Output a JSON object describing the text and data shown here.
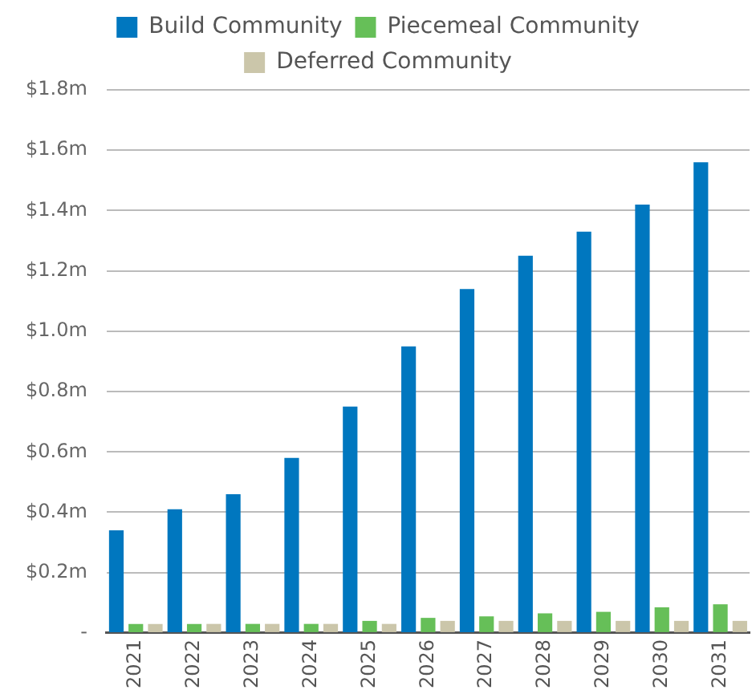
{
  "chart_data": {
    "type": "bar",
    "categories": [
      "2021",
      "2022",
      "2023",
      "2024",
      "2025",
      "2026",
      "2027",
      "2028",
      "2029",
      "2030",
      "2031"
    ],
    "series": [
      {
        "name": "Build Community",
        "color": "#0077bf",
        "values": [
          0.34,
          0.41,
          0.46,
          0.58,
          0.75,
          0.95,
          1.14,
          1.25,
          1.33,
          1.42,
          1.56
        ]
      },
      {
        "name": "Piecemeal Community",
        "color": "#66bf58",
        "values": [
          0.03,
          0.03,
          0.03,
          0.03,
          0.04,
          0.05,
          0.055,
          0.065,
          0.07,
          0.085,
          0.095
        ]
      },
      {
        "name": "Deferred Community",
        "color": "#cbc6aa",
        "values": [
          0.03,
          0.03,
          0.03,
          0.03,
          0.03,
          0.04,
          0.04,
          0.04,
          0.04,
          0.04,
          0.04
        ]
      }
    ],
    "ylim": [
      0,
      1.8
    ],
    "yticks": [
      {
        "value": 0,
        "label": "-"
      },
      {
        "value": 0.2,
        "label": "$0.2m"
      },
      {
        "value": 0.4,
        "label": "$0.4m"
      },
      {
        "value": 0.6,
        "label": "$0.6m"
      },
      {
        "value": 0.8,
        "label": "$0.8m"
      },
      {
        "value": 1.0,
        "label": "$1.0m"
      },
      {
        "value": 1.2,
        "label": "$1.2m"
      },
      {
        "value": 1.4,
        "label": "$1.4m"
      },
      {
        "value": 1.6,
        "label": "$1.6m"
      },
      {
        "value": 1.8,
        "label": "$1.8m"
      }
    ],
    "grid": "y",
    "legend": "top"
  }
}
